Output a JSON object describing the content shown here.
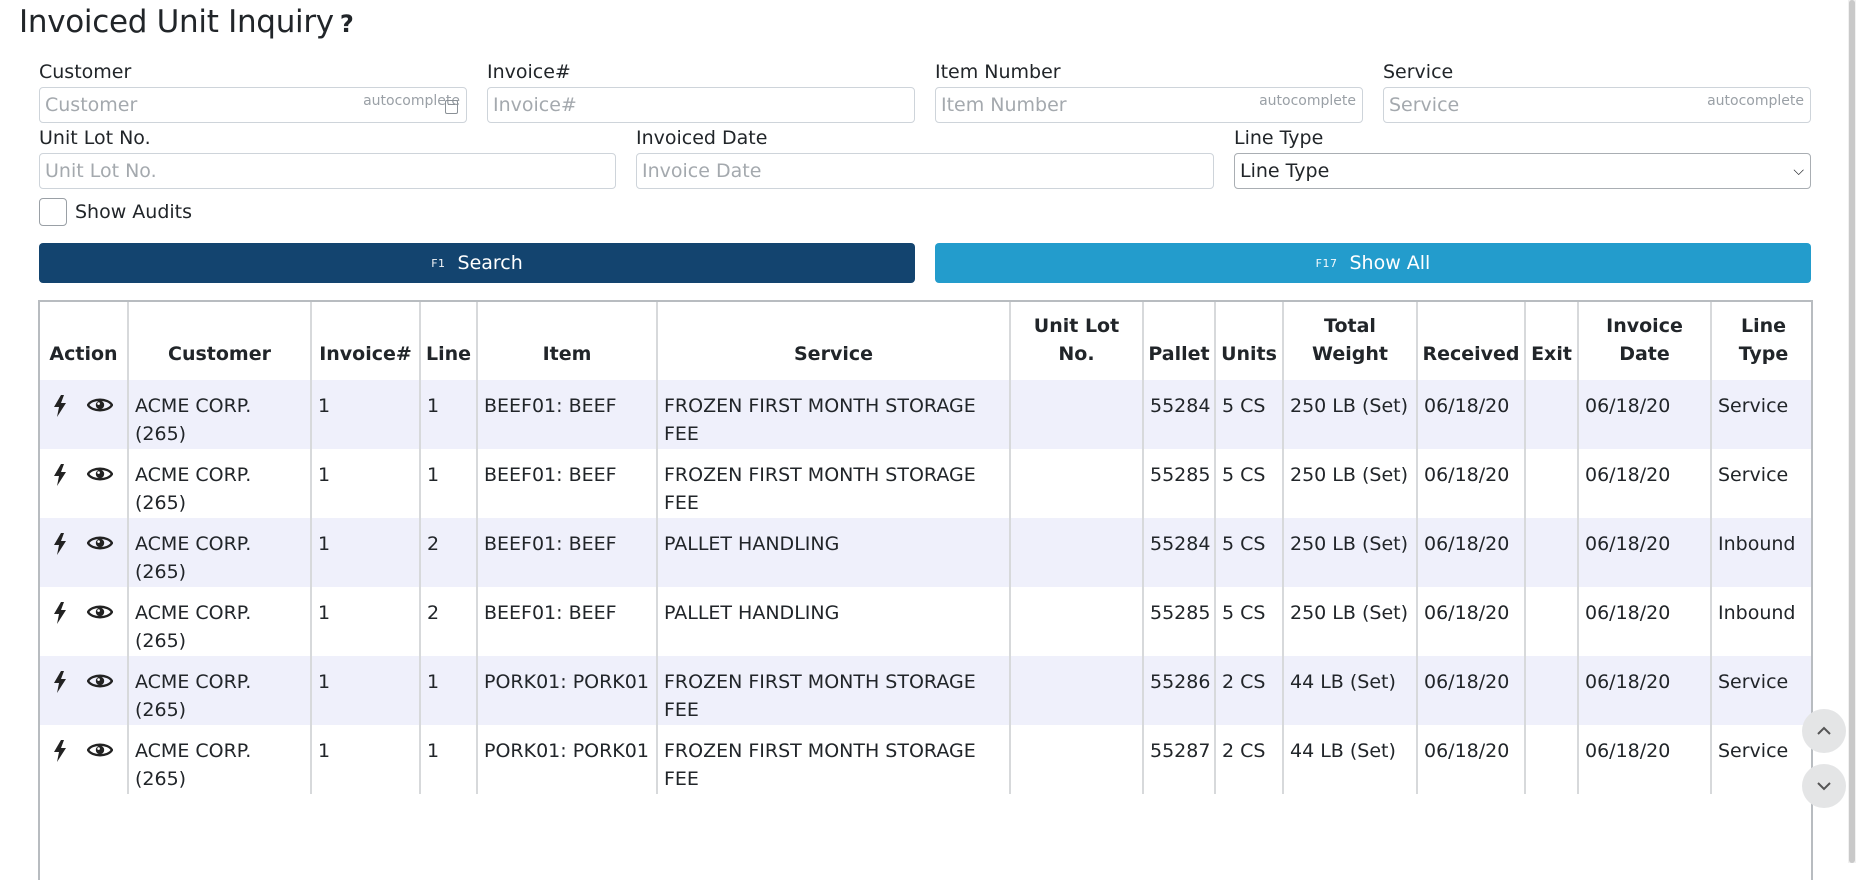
{
  "page": {
    "title": "Invoiced Unit Inquiry",
    "help": "?"
  },
  "filters": {
    "customer": {
      "label": "Customer",
      "placeholder": "Customer",
      "hint": "autocomplete"
    },
    "invoice": {
      "label": "Invoice#",
      "placeholder": "Invoice#"
    },
    "item_number": {
      "label": "Item Number",
      "placeholder": "Item Number",
      "hint": "autocomplete"
    },
    "service": {
      "label": "Service",
      "placeholder": "Service",
      "hint": "autocomplete"
    },
    "unit_lot": {
      "label": "Unit Lot No.",
      "placeholder": "Unit Lot No."
    },
    "invoiced_date": {
      "label": "Invoiced Date",
      "placeholder": "Invoice Date"
    },
    "line_type": {
      "label": "Line Type",
      "selected": "Line Type"
    },
    "show_audits": {
      "label": "Show Audits"
    }
  },
  "actions": {
    "search": {
      "key": "F1",
      "label": "Search"
    },
    "show_all": {
      "key": "F17",
      "label": "Show All"
    }
  },
  "colors": {
    "primary": "#13446f",
    "info": "#239ccc",
    "row_alt": "#eff0fb"
  },
  "table": {
    "headers": [
      "Action",
      "Customer",
      "Invoice#",
      "Line",
      "Item",
      "Service",
      "Unit Lot No.",
      "Pallet",
      "Units",
      "Total Weight",
      "Received",
      "Exit",
      "Invoice Date",
      "Line Type"
    ],
    "rows": [
      {
        "customer": "ACME CORP. (265)",
        "invoice": "1",
        "line": "1",
        "item": "BEEF01: BEEF",
        "service": "FROZEN FIRST MONTH STORAGE FEE",
        "unit_lot": "",
        "pallet": "55284",
        "units": "5 CS",
        "weight": "250 LB (Set)",
        "received": "06/18/20",
        "exit": "",
        "invoice_date": "06/18/20",
        "line_type": "Service"
      },
      {
        "customer": "ACME CORP. (265)",
        "invoice": "1",
        "line": "1",
        "item": "BEEF01: BEEF",
        "service": "FROZEN FIRST MONTH STORAGE FEE",
        "unit_lot": "",
        "pallet": "55285",
        "units": "5 CS",
        "weight": "250 LB (Set)",
        "received": "06/18/20",
        "exit": "",
        "invoice_date": "06/18/20",
        "line_type": "Service"
      },
      {
        "customer": "ACME CORP. (265)",
        "invoice": "1",
        "line": "2",
        "item": "BEEF01: BEEF",
        "service": "PALLET HANDLING",
        "unit_lot": "",
        "pallet": "55284",
        "units": "5 CS",
        "weight": "250 LB (Set)",
        "received": "06/18/20",
        "exit": "",
        "invoice_date": "06/18/20",
        "line_type": "Inbound"
      },
      {
        "customer": "ACME CORP. (265)",
        "invoice": "1",
        "line": "2",
        "item": "BEEF01: BEEF",
        "service": "PALLET HANDLING",
        "unit_lot": "",
        "pallet": "55285",
        "units": "5 CS",
        "weight": "250 LB (Set)",
        "received": "06/18/20",
        "exit": "",
        "invoice_date": "06/18/20",
        "line_type": "Inbound"
      },
      {
        "customer": "ACME CORP. (265)",
        "invoice": "1",
        "line": "1",
        "item": "PORK01: PORK01",
        "service": "FROZEN FIRST MONTH STORAGE FEE",
        "unit_lot": "",
        "pallet": "55286",
        "units": "2 CS",
        "weight": "44 LB (Set)",
        "received": "06/18/20",
        "exit": "",
        "invoice_date": "06/18/20",
        "line_type": "Service"
      },
      {
        "customer": "ACME CORP. (265)",
        "invoice": "1",
        "line": "1",
        "item": "PORK01: PORK01",
        "service": "FROZEN FIRST MONTH STORAGE FEE",
        "unit_lot": "",
        "pallet": "55287",
        "units": "2 CS",
        "weight": "44 LB (Set)",
        "received": "06/18/20",
        "exit": "",
        "invoice_date": "06/18/20",
        "line_type": "Service"
      }
    ]
  }
}
